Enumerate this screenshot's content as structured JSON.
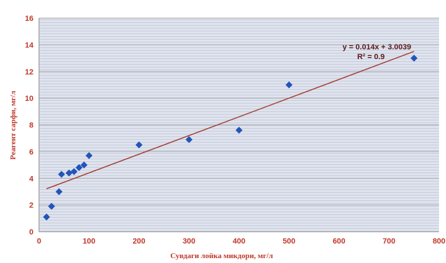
{
  "chart_data": {
    "type": "scatter",
    "xlabel": "Сувдаги лойка микдори, мг/л",
    "ylabel": "Реагент сарфи, мг/л",
    "xlim": [
      0,
      800
    ],
    "ylim": [
      0,
      16
    ],
    "x_ticks": [
      "0",
      "100",
      "200",
      "300",
      "400",
      "500",
      "600",
      "700",
      "800"
    ],
    "y_ticks": [
      "0",
      "2",
      "4",
      "6",
      "8",
      "10",
      "12",
      "14",
      "16"
    ],
    "grid": true,
    "series": [
      {
        "x": [
          15,
          25,
          40,
          45,
          60,
          70,
          80,
          90,
          100,
          200,
          300,
          400,
          500,
          750
        ],
        "y": [
          1.1,
          1.9,
          3.0,
          4.3,
          4.4,
          4.5,
          4.8,
          5.0,
          5.7,
          6.5,
          6.9,
          7.6,
          11.0,
          13.0
        ],
        "color": "#2255b8",
        "marker": "diamond"
      }
    ],
    "trendline": {
      "slope": 0.014,
      "intercept": 3.0039,
      "x_range": [
        15,
        750
      ],
      "color": "#a0392b",
      "equation_label": "y = 0.014x + 3.0039",
      "r2_label": "R² = 0.9"
    }
  }
}
